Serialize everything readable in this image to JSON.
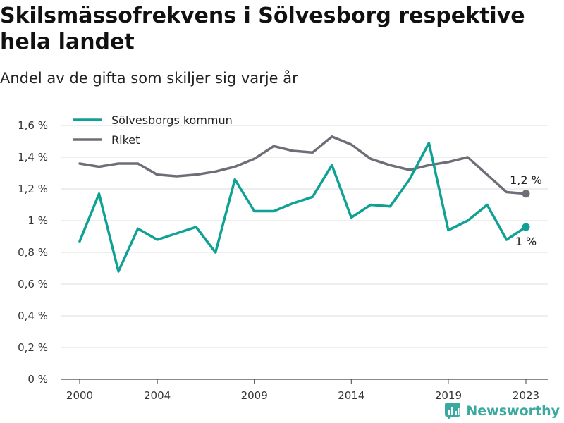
{
  "title": "Skilsmässofrekvens i Sölvesborg respektive hela landet",
  "subtitle": "Andel av de gifta som skiljer sig varje år",
  "brand": "Newsworthy",
  "colors": {
    "solvesborg": "#10a195",
    "riket": "#6e6e78",
    "grid": "#dddddd",
    "axis": "#444444"
  },
  "chart_data": {
    "type": "line",
    "x": [
      2000,
      2001,
      2002,
      2003,
      2004,
      2005,
      2006,
      2007,
      2008,
      2009,
      2010,
      2011,
      2012,
      2013,
      2014,
      2015,
      2016,
      2017,
      2018,
      2019,
      2020,
      2021,
      2022,
      2023
    ],
    "xticks": [
      "2000",
      "2004",
      "2009",
      "2014",
      "2019",
      "2023"
    ],
    "xtick_values": [
      2000,
      2004,
      2009,
      2014,
      2019,
      2023
    ],
    "ylim": [
      0,
      1.6
    ],
    "yticks": [
      "0 %",
      "0,2 %",
      "0,4 %",
      "0,6 %",
      "0,8 %",
      "1 %",
      "1,2 %",
      "1,4 %",
      "1,6 %"
    ],
    "ytick_values": [
      0,
      0.2,
      0.4,
      0.6,
      0.8,
      1.0,
      1.2,
      1.4,
      1.6
    ],
    "grid": true,
    "legend_placement": "top-left",
    "series": [
      {
        "name": "Sölvesborgs kommun",
        "values": [
          0.87,
          1.17,
          0.68,
          0.95,
          0.88,
          0.92,
          0.96,
          0.8,
          1.26,
          1.06,
          1.06,
          1.11,
          1.15,
          1.35,
          1.02,
          1.1,
          1.09,
          1.26,
          1.49,
          0.94,
          1.0,
          1.1,
          0.88,
          0.96
        ],
        "end_label": "1 %"
      },
      {
        "name": "Riket",
        "values": [
          1.36,
          1.34,
          1.36,
          1.36,
          1.29,
          1.28,
          1.29,
          1.31,
          1.34,
          1.39,
          1.47,
          1.44,
          1.43,
          1.53,
          1.48,
          1.39,
          1.35,
          1.32,
          1.35,
          1.37,
          1.4,
          1.29,
          1.18,
          1.17
        ],
        "end_label": "1,2 %"
      }
    ]
  }
}
